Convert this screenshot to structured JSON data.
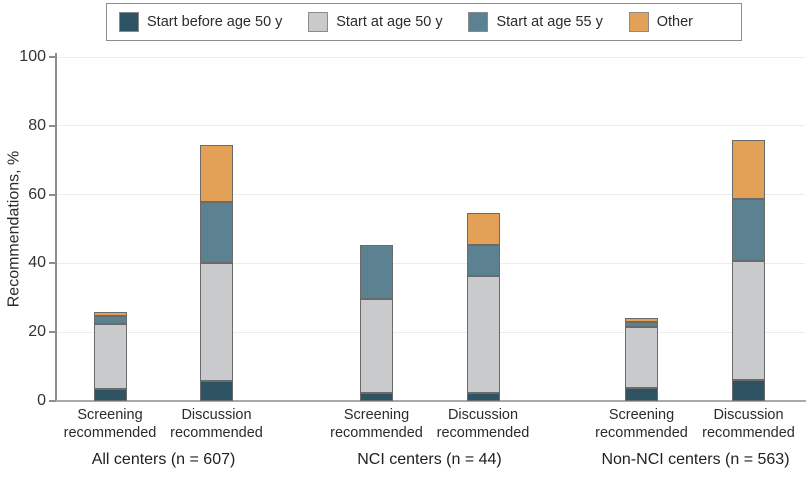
{
  "chart_data": {
    "type": "bar",
    "stacked": true,
    "title": "",
    "ylabel": "Recommendations, %",
    "ylim": [
      0,
      100
    ],
    "yticks": [
      0,
      20,
      40,
      60,
      80,
      100
    ],
    "grid": true,
    "legend_position": "top-outside",
    "series": [
      {
        "name": "Start before age 50 y",
        "color": "#2e5463"
      },
      {
        "name": "Start at age 50 y",
        "color": "#c9cacc"
      },
      {
        "name": "Start at age 55 y",
        "color": "#5c8191"
      },
      {
        "name": "Other",
        "color": "#e2a156"
      }
    ],
    "groups": [
      {
        "label": "All centers (n = 607)",
        "bars": [
          {
            "label_lines": [
              "Screening",
              "recommended"
            ],
            "values": [
              3.6,
              18.8,
              2.3,
              1.2
            ]
          },
          {
            "label_lines": [
              "Discussion",
              "recommended"
            ],
            "values": [
              5.8,
              34.4,
              17.6,
              16.5
            ]
          }
        ]
      },
      {
        "label": "NCI centers (n = 44)",
        "bars": [
          {
            "label_lines": [
              "Screening",
              "recommended"
            ],
            "values": [
              2.3,
              27.3,
              15.9,
              0
            ]
          },
          {
            "label_lines": [
              "Discussion",
              "recommended"
            ],
            "values": [
              2.3,
              34.1,
              9.1,
              9.1
            ]
          }
        ]
      },
      {
        "label": "Non-NCI centers (n = 563)",
        "bars": [
          {
            "label_lines": [
              "Screening",
              "recommended"
            ],
            "values": [
              3.7,
              17.9,
              1.4,
              1.2
            ]
          },
          {
            "label_lines": [
              "Discussion",
              "recommended"
            ],
            "values": [
              6.0,
              34.6,
              18.0,
              17.2
            ]
          }
        ]
      }
    ]
  }
}
